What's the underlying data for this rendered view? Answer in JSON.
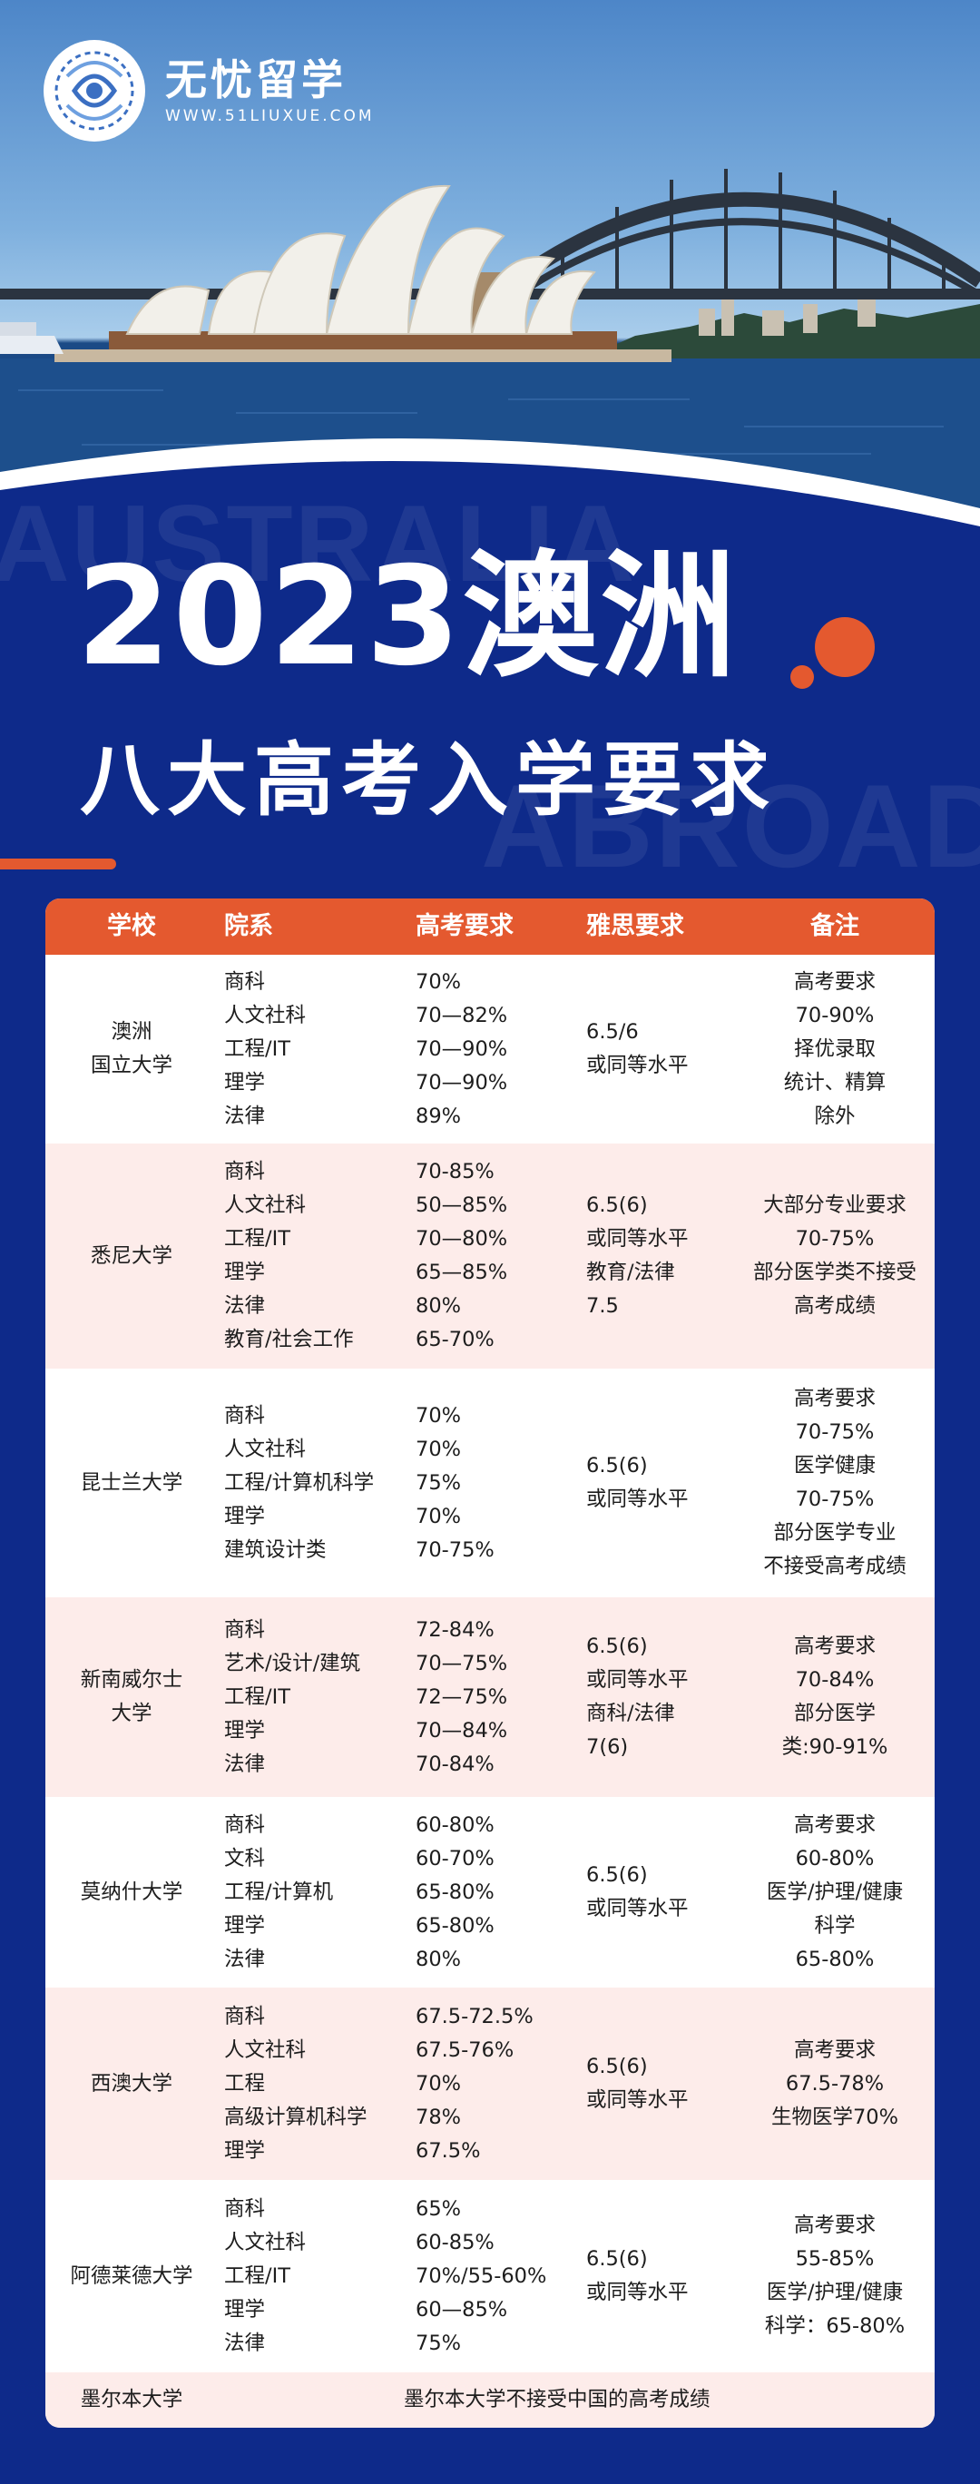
{
  "brand": {
    "name": "无忧留学",
    "url": "WWW.51LIUXUE.COM"
  },
  "watermark": {
    "line1": "AUSTRALIA",
    "line2": "ABROAD"
  },
  "title": {
    "year_line": "2023澳洲",
    "subtitle": "八大高考入学要求"
  },
  "colors": {
    "accent": "#e4592f",
    "background": "#0e2a8a",
    "alt_row": "#fdecea"
  },
  "table": {
    "headers": [
      "学校",
      "院系",
      "高考要求",
      "雅思要求",
      "备注"
    ],
    "rows": [
      {
        "school": [
          "澳洲",
          "国立大学"
        ],
        "depts": [
          "商科",
          "人文社科",
          "工程/IT",
          "理学",
          "法律"
        ],
        "gaokao": [
          "70%",
          "70—82%",
          "70—90%",
          "70—90%",
          "89%"
        ],
        "ielts": [
          "6.5/6",
          "或同等水平"
        ],
        "note": [
          "高考要求",
          "70-90%",
          "择优录取",
          "统计、精算",
          "除外"
        ]
      },
      {
        "school": [
          "悉尼大学"
        ],
        "depts": [
          "商科",
          "人文社科",
          "工程/IT",
          "理学",
          "法律",
          "教育/社会工作"
        ],
        "gaokao": [
          "70-85%",
          "50—85%",
          "70—80%",
          "65—85%",
          "80%",
          "65-70%"
        ],
        "ielts": [
          "6.5(6)",
          "或同等水平",
          "教育/法律",
          "7.5"
        ],
        "note": [
          "大部分专业要求",
          "70-75%",
          "部分医学类不接受",
          "高考成绩"
        ]
      },
      {
        "school": [
          "昆士兰大学"
        ],
        "depts": [
          "商科",
          "人文社科",
          "工程/计算机科学",
          "理学",
          "建筑设计类"
        ],
        "gaokao": [
          "70%",
          "70%",
          "75%",
          "70%",
          "70-75%"
        ],
        "ielts": [
          "6.5(6)",
          "或同等水平"
        ],
        "note": [
          "高考要求",
          "70-75%",
          "医学健康",
          "70-75%",
          "部分医学专业",
          "不接受高考成绩"
        ]
      },
      {
        "school": [
          "新南威尔士",
          "大学"
        ],
        "depts": [
          "商科",
          "艺术/设计/建筑",
          "工程/IT",
          "理学",
          "法律"
        ],
        "gaokao": [
          "72-84%",
          "70—75%",
          "72—75%",
          "70—84%",
          "70-84%"
        ],
        "ielts": [
          "6.5(6)",
          "或同等水平",
          "商科/法律",
          "7(6)"
        ],
        "note": [
          "高考要求",
          "70-84%",
          "部分医学",
          "类:90-91%"
        ]
      },
      {
        "school": [
          "莫纳什大学"
        ],
        "depts": [
          "商科",
          "文科",
          "工程/计算机",
          "理学",
          "法律"
        ],
        "gaokao": [
          "60-80%",
          "60-70%",
          "65-80%",
          "65-80%",
          "80%"
        ],
        "ielts": [
          "6.5(6)",
          "或同等水平"
        ],
        "note": [
          "高考要求",
          "60-80%",
          "医学/护理/健康",
          "科学",
          "65-80%"
        ]
      },
      {
        "school": [
          "西澳大学"
        ],
        "depts": [
          "商科",
          "人文社科",
          "工程",
          "高级计算机科学",
          "理学"
        ],
        "gaokao": [
          "67.5-72.5%",
          "67.5-76%",
          "70%",
          "78%",
          "67.5%"
        ],
        "ielts": [
          "6.5(6)",
          "或同等水平"
        ],
        "note": [
          "高考要求",
          "67.5-78%",
          "生物医学70%"
        ]
      },
      {
        "school": [
          "阿德莱德大学"
        ],
        "depts": [
          "商科",
          "人文社科",
          "工程/IT",
          "理学",
          "法律"
        ],
        "gaokao": [
          "65%",
          "60-85%",
          "70%/55-60%",
          "60—85%",
          "75%"
        ],
        "ielts": [
          "6.5(6)",
          "或同等水平"
        ],
        "note": [
          "高考要求",
          "55-85%",
          "医学/护理/健康",
          "科学：65-80%"
        ]
      }
    ],
    "last_row": {
      "school": "墨尔本大学",
      "note": "墨尔本大学不接受中国的高考成绩"
    }
  }
}
